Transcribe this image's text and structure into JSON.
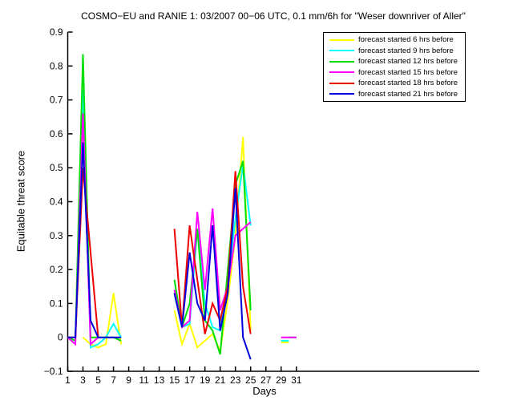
{
  "chart_data": {
    "type": "line",
    "title": "COSMO−EU and RANIE 1: 03/2007 00−06 UTC, 0.1 mm/6h for \"Weser downriver of Aller\"",
    "xlabel": "Days",
    "ylabel": "Equitable threat score",
    "xlim": [
      1,
      55
    ],
    "ylim": [
      -0.1,
      0.9
    ],
    "xticks": [
      1,
      3,
      5,
      7,
      9,
      11,
      13,
      15,
      17,
      19,
      21,
      23,
      25,
      27,
      29,
      31
    ],
    "yticks": [
      -0.1,
      0,
      0.1,
      0.2,
      0.3,
      0.4,
      0.5,
      0.6,
      0.7,
      0.8,
      0.9
    ],
    "grid": false,
    "box": false,
    "legend_position": "top-right",
    "axis_color": "#000000",
    "series": [
      {
        "name": "forecast started 6 hrs before",
        "color": "#ffff00",
        "segments": [
          [
            [
              3,
              0
            ],
            [
              4,
              -0.02
            ],
            [
              5,
              -0.03
            ],
            [
              6,
              -0.02
            ],
            [
              7,
              0.13
            ],
            [
              8,
              -0.02
            ]
          ],
          [
            [
              15,
              0.08
            ],
            [
              16,
              -0.02
            ],
            [
              17,
              0.04
            ],
            [
              18,
              -0.03
            ],
            [
              19,
              -0.01
            ],
            [
              20,
              0.01
            ],
            [
              21,
              -0.04
            ],
            [
              22,
              0.11
            ],
            [
              23,
              0.3
            ],
            [
              24,
              0.59
            ],
            [
              25,
              0.02
            ]
          ],
          [
            [
              29,
              -0.015
            ],
            [
              30,
              -0.015
            ]
          ]
        ]
      },
      {
        "name": "forecast started 9 hrs before",
        "color": "#00ffff",
        "segments": [
          [
            [
              1,
              0
            ],
            [
              2,
              -0.01
            ],
            [
              3,
              0.73
            ],
            [
              4,
              -0.03
            ],
            [
              5,
              -0.02
            ],
            [
              6,
              0
            ],
            [
              7,
              0.04
            ],
            [
              8,
              0
            ]
          ],
          [
            [
              15,
              0.13
            ],
            [
              16,
              0.03
            ],
            [
              17,
              0.04
            ],
            [
              18,
              0.32
            ],
            [
              19,
              0.1
            ],
            [
              20,
              0.03
            ],
            [
              21,
              0.02
            ],
            [
              22,
              0.16
            ],
            [
              23,
              0.35
            ],
            [
              24,
              0.51
            ],
            [
              25,
              0.33
            ]
          ],
          [
            [
              29,
              -0.01
            ],
            [
              30,
              -0.01
            ]
          ]
        ]
      },
      {
        "name": "forecast started 12 hrs before",
        "color": "#00dd00",
        "segments": [
          [
            [
              1,
              0
            ],
            [
              2,
              -0.01
            ],
            [
              3,
              0.835
            ],
            [
              4,
              0
            ],
            [
              5,
              0
            ],
            [
              6,
              0
            ],
            [
              7,
              0
            ],
            [
              8,
              -0.01
            ]
          ],
          [
            [
              15,
              0.17
            ],
            [
              16,
              0.03
            ],
            [
              17,
              0.1
            ],
            [
              18,
              0.32
            ],
            [
              19,
              0.05
            ],
            [
              20,
              0.02
            ],
            [
              21,
              -0.05
            ],
            [
              22,
              0.2
            ],
            [
              23,
              0.45
            ],
            [
              24,
              0.52
            ],
            [
              25,
              0.08
            ]
          ],
          [
            [
              30,
              0
            ],
            [
              31,
              0
            ]
          ]
        ]
      },
      {
        "name": "forecast started 15 hrs before",
        "color": "#ff00ff",
        "segments": [
          [
            [
              1,
              0
            ],
            [
              2,
              -0.02
            ],
            [
              3,
              0.66
            ],
            [
              4,
              -0.02
            ],
            [
              5,
              0
            ]
          ],
          [
            [
              15,
              0.14
            ],
            [
              16,
              0.03
            ],
            [
              17,
              0.05
            ],
            [
              18,
              0.37
            ],
            [
              19,
              0.14
            ],
            [
              20,
              0.38
            ],
            [
              21,
              0.08
            ],
            [
              22,
              0.15
            ],
            [
              23,
              0.3
            ],
            [
              24,
              0.32
            ],
            [
              25,
              0.34
            ]
          ],
          [
            [
              29,
              0
            ],
            [
              30,
              0
            ],
            [
              31,
              0
            ]
          ]
        ]
      },
      {
        "name": "forecast started 18 hrs before",
        "color": "#ee0000",
        "segments": [
          [
            [
              1,
              0
            ],
            [
              2,
              0
            ],
            [
              3,
              0.5
            ],
            [
              4,
              0.25
            ],
            [
              5,
              0
            ]
          ],
          [
            [
              15,
              0.32
            ],
            [
              16,
              0.03
            ],
            [
              17,
              0.33
            ],
            [
              18,
              0.17
            ],
            [
              19,
              0.01
            ],
            [
              20,
              0.1
            ],
            [
              21,
              0.05
            ],
            [
              22,
              0.15
            ],
            [
              23,
              0.49
            ],
            [
              24,
              0.15
            ],
            [
              25,
              0.01
            ]
          ]
        ]
      },
      {
        "name": "forecast started 21 hrs before",
        "color": "#0000dd",
        "segments": [
          [
            [
              1,
              0
            ],
            [
              2,
              0
            ],
            [
              3,
              0.575
            ],
            [
              4,
              0.05
            ],
            [
              5,
              0
            ],
            [
              6,
              0
            ],
            [
              7,
              0
            ],
            [
              8,
              0
            ]
          ],
          [
            [
              15,
              0.13
            ],
            [
              16,
              0.03
            ],
            [
              17,
              0.25
            ],
            [
              18,
              0.1
            ],
            [
              19,
              0.05
            ],
            [
              20,
              0.33
            ],
            [
              21,
              0.02
            ],
            [
              22,
              0.13
            ],
            [
              23,
              0.44
            ],
            [
              24,
              0.0
            ],
            [
              25,
              -0.065
            ]
          ]
        ]
      }
    ]
  }
}
